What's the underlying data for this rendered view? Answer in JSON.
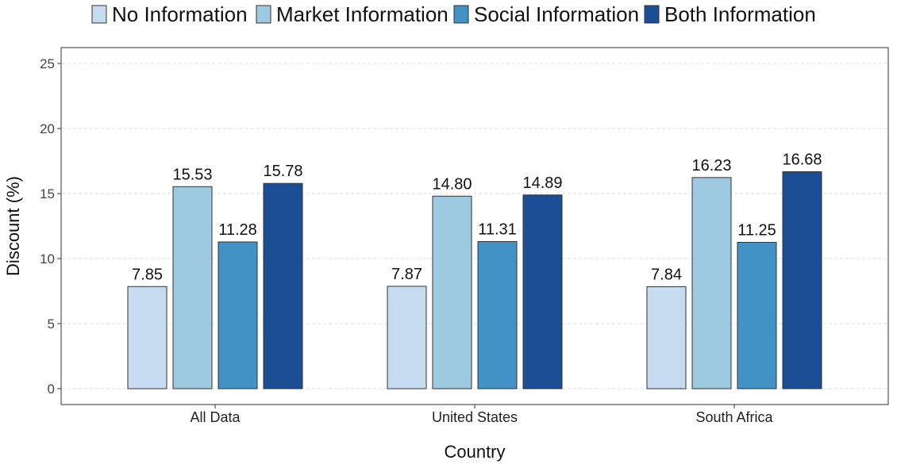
{
  "chart_data": {
    "type": "bar",
    "title": "",
    "xlabel": "Country",
    "ylabel": "Discount (%)",
    "ylim": [
      0,
      25
    ],
    "yticks": [
      0,
      5,
      10,
      15,
      20,
      25
    ],
    "grid": true,
    "legend_position": "top",
    "categories": [
      "All Data",
      "United States",
      "South Africa"
    ],
    "series": [
      {
        "name": "No Information",
        "color": "#c6dbef",
        "values": [
          7.85,
          7.87,
          7.84
        ],
        "labels": [
          "7.85",
          "7.87",
          "7.84"
        ]
      },
      {
        "name": "Market Information",
        "color": "#9ecae1",
        "values": [
          15.53,
          14.8,
          16.23
        ],
        "labels": [
          "15.53",
          "14.80",
          "16.23"
        ]
      },
      {
        "name": "Social Information",
        "color": "#4292c6",
        "values": [
          11.28,
          11.31,
          11.25
        ],
        "labels": [
          "11.28",
          "11.31",
          "11.25"
        ]
      },
      {
        "name": "Both Information",
        "color": "#1a4f96",
        "values": [
          15.78,
          14.89,
          16.68
        ],
        "labels": [
          "15.78",
          "14.89",
          "16.68"
        ]
      }
    ]
  }
}
